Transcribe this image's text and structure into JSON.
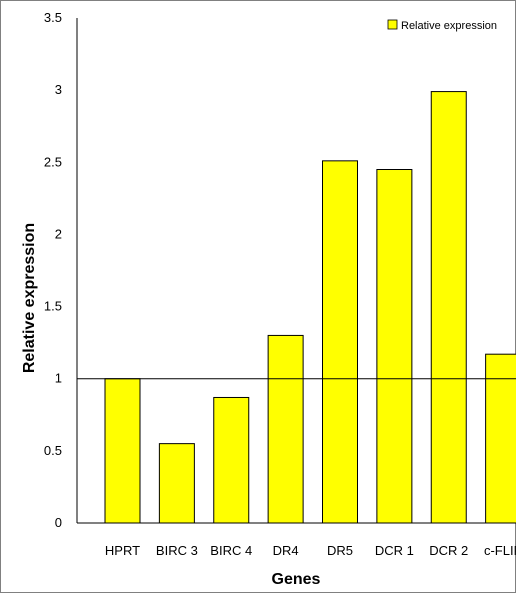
{
  "chart_data": {
    "type": "bar",
    "categories": [
      "HPRT",
      "BIRC 3",
      "BIRC 4",
      "DR4",
      "DR5",
      "DCR 1",
      "DCR 2",
      "c-FLIP"
    ],
    "series": [
      {
        "name": "Relative expression",
        "values": [
          1.0,
          0.55,
          0.87,
          1.3,
          2.51,
          2.45,
          2.99,
          1.17
        ],
        "color": "#FFFF00"
      }
    ],
    "title": "",
    "xlabel": "Genes",
    "ylabel": "Relative expression",
    "ylim": [
      0,
      3.5
    ],
    "yticks": [
      "0",
      "0.5",
      "1",
      "1.5",
      "2",
      "2.5",
      "3",
      "3.5"
    ],
    "reference_line": 1,
    "grid": false,
    "legend": "top-right",
    "bar_border_color": "#000000"
  }
}
